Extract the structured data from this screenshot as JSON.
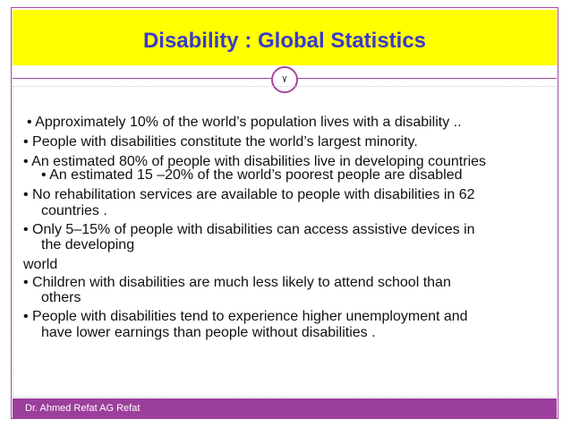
{
  "header": {
    "title": "Disability  : Global Statistics",
    "slide_number": "٧"
  },
  "body": {
    "lines": [
      "• Approximately 10% of the world’s population lives with a disability ..",
      "• People with disabilities constitute the world’s largest minority.",
      "• An estimated 80% of people with disabilities live in developing countries",
      "• An estimated 15 –20% of the world’s poorest people are disabled",
      "• No rehabilitation services are available to people with disabilities in 62",
      "countries .",
      "• Only 5–15% of people with disabilities can access assistive devices in",
      "the developing",
      "world",
      "• Children with disabilities are much less likely to attend school than",
      "others",
      "• People with disabilities tend to experience higher unemployment and",
      "have lower earnings than people without disabilities ."
    ]
  },
  "footer": {
    "author": "Dr. Ahmed Refat  AG Refat"
  }
}
